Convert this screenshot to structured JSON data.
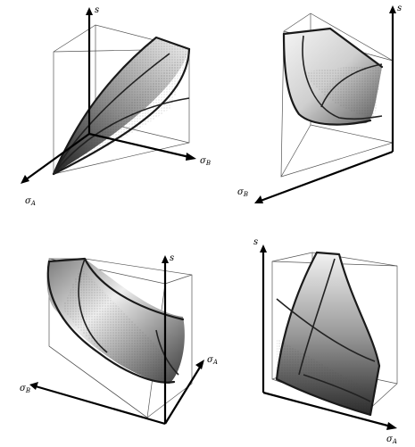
{
  "panels": [
    {
      "id": "top-left",
      "axis_labels": [
        {
          "symbol": "s",
          "subscript": ""
        },
        {
          "symbol": "σ",
          "subscript": "B"
        },
        {
          "symbol": "σ",
          "subscript": "A"
        }
      ]
    },
    {
      "id": "top-right",
      "axis_labels": [
        {
          "symbol": "s",
          "subscript": ""
        },
        {
          "symbol": "σ",
          "subscript": "B"
        }
      ]
    },
    {
      "id": "bottom-left",
      "axis_labels": [
        {
          "symbol": "s",
          "subscript": ""
        },
        {
          "symbol": "σ",
          "subscript": "A"
        },
        {
          "symbol": "σ",
          "subscript": "B"
        }
      ]
    },
    {
      "id": "bottom-right",
      "axis_labels": [
        {
          "symbol": "s",
          "subscript": ""
        },
        {
          "symbol": "σ",
          "subscript": "A"
        }
      ]
    }
  ]
}
